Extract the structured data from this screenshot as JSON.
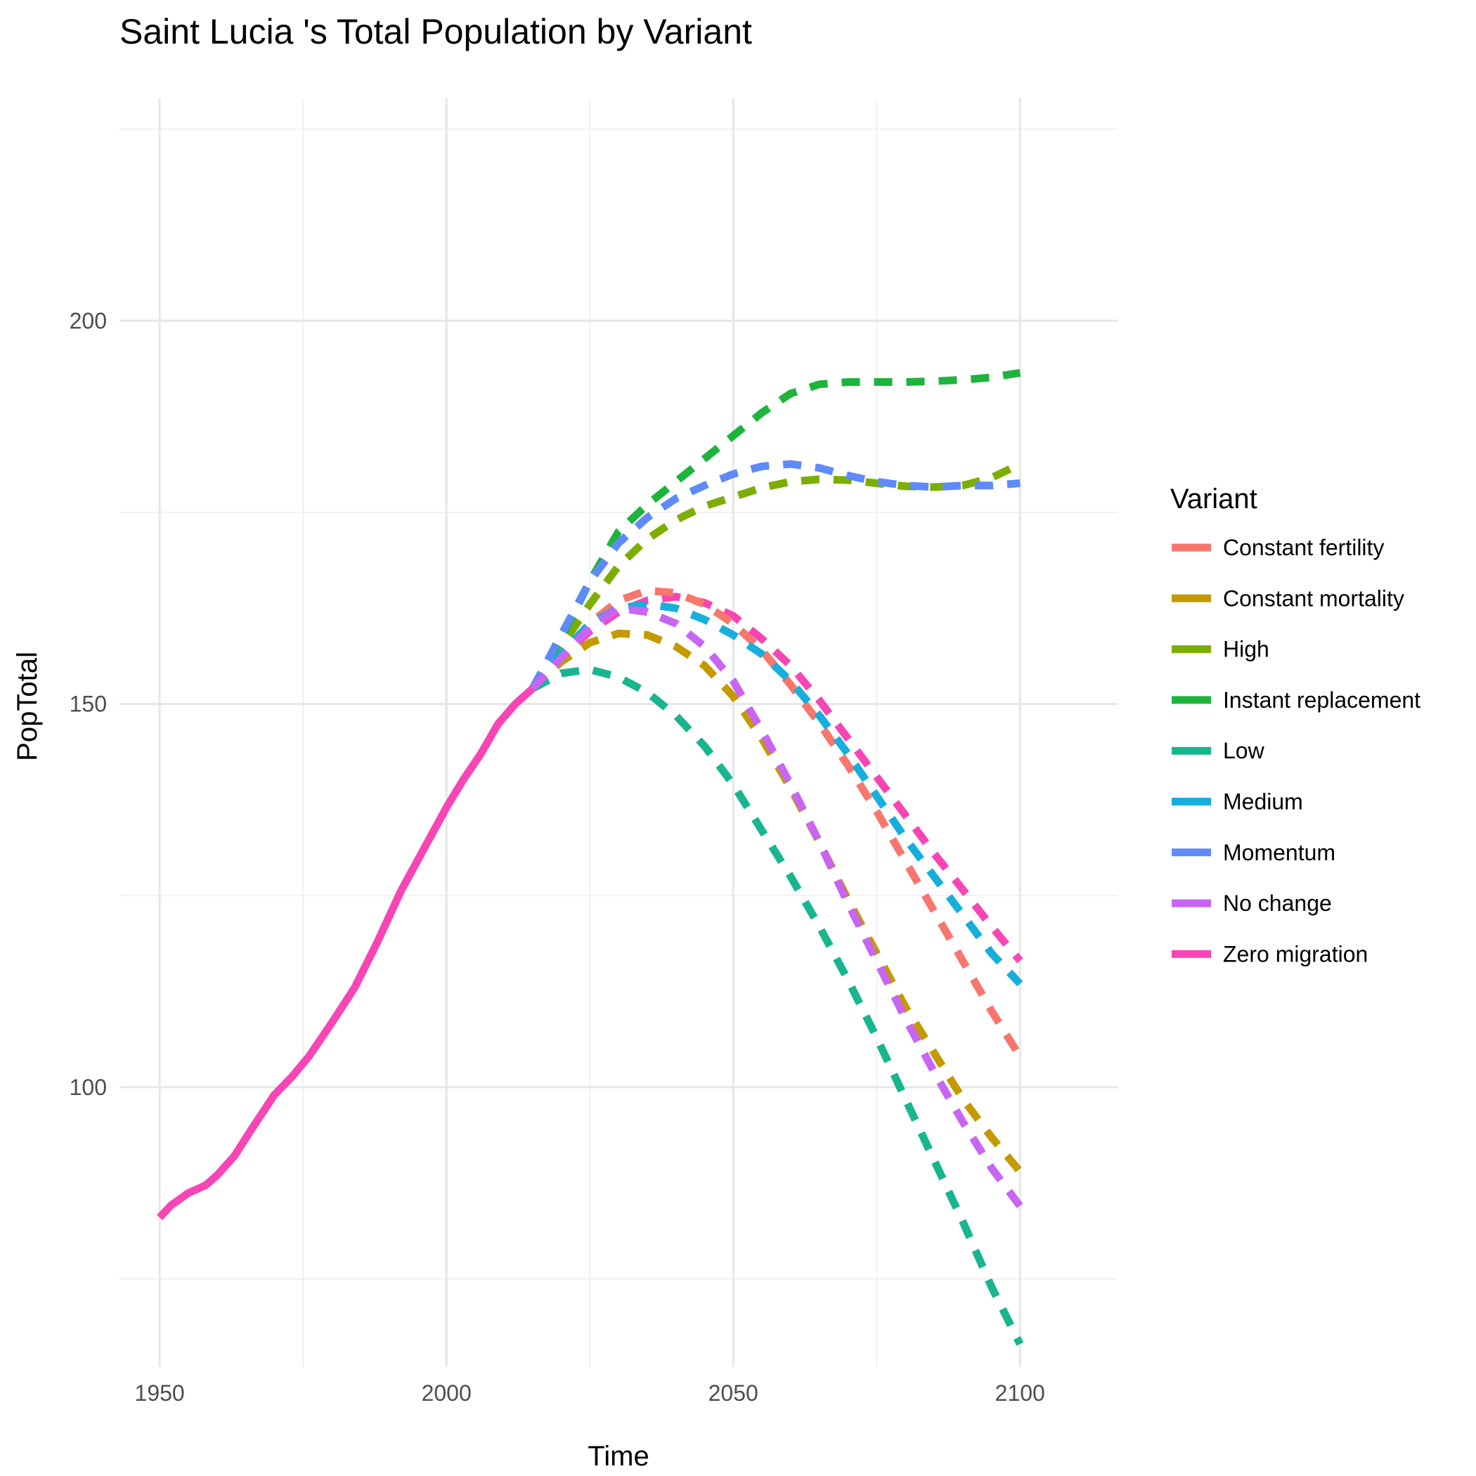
{
  "chart_data": {
    "type": "line",
    "title": "Saint Lucia 's Total Population by Variant",
    "xlabel": "Time",
    "ylabel": "PopTotal",
    "xlim": [
      1943,
      2117
    ],
    "ylim": [
      63.5,
      229
    ],
    "x_ticks": [
      1950,
      2000,
      2050,
      2100
    ],
    "x_tick_labels": [
      "1950",
      "2000",
      "2050",
      "2100"
    ],
    "y_ticks": [
      100,
      150,
      200
    ],
    "y_tick_labels": [
      "100",
      "150",
      "200"
    ],
    "grid": true,
    "legend": {
      "title": "Variant",
      "position": "right",
      "entries": [
        "Constant fertility",
        "Constant mortality",
        "High",
        "Instant replacement",
        "Low",
        "Medium",
        "Momentum",
        "No change",
        "Zero migration"
      ]
    },
    "colors": {
      "Constant fertility": "#F8766D",
      "Constant mortality": "#C49A00",
      "High": "#7CAE00",
      "Instant replacement": "#1EB43C",
      "Low": "#19B58F",
      "Medium": "#17AEDC",
      "Momentum": "#5F8AF9",
      "No change": "#C964F3",
      "Zero migration": "#F745B6"
    },
    "series": [
      {
        "name": "Zero migration",
        "style": "solid",
        "x": [
          1950,
          1952,
          1955,
          1958,
          1960,
          1963,
          1966,
          1970,
          1973,
          1976,
          1980,
          1984,
          1988,
          1992,
          1996,
          2000,
          2003,
          2006,
          2009,
          2012,
          2015
        ],
        "y": [
          83.0,
          84.6,
          86.2,
          87.2,
          88.5,
          91.0,
          94.5,
          99.0,
          101.3,
          104.0,
          108.4,
          113.0,
          119.0,
          125.5,
          131.0,
          136.5,
          140.2,
          143.5,
          147.4,
          150.0,
          152.0
        ]
      },
      {
        "name": "Zero migration",
        "style": "dashed",
        "x": [
          2015,
          2020,
          2025,
          2030,
          2035,
          2040,
          2045,
          2050,
          2055,
          2060,
          2065,
          2070,
          2075,
          2080,
          2085,
          2090,
          2095,
          2100
        ],
        "y": [
          152.0,
          156.0,
          159.5,
          162.0,
          163.5,
          164.0,
          163.2,
          161.5,
          158.5,
          155.0,
          150.5,
          145.5,
          140.5,
          135.5,
          130.5,
          125.8,
          121.0,
          116.5
        ]
      },
      {
        "name": "Constant fertility",
        "style": "dashed",
        "x": [
          2015,
          2020,
          2025,
          2030,
          2035,
          2040,
          2045,
          2050,
          2055,
          2060,
          2065,
          2070,
          2075,
          2080,
          2085,
          2090,
          2095,
          2100
        ],
        "y": [
          152.0,
          156.5,
          160.5,
          163.5,
          164.8,
          164.5,
          163.0,
          160.5,
          157.0,
          152.5,
          147.5,
          142.0,
          136.0,
          129.5,
          123.0,
          116.5,
          110.0,
          104.0
        ]
      },
      {
        "name": "Constant mortality",
        "style": "dashed",
        "x": [
          2015,
          2020,
          2025,
          2030,
          2035,
          2040,
          2045,
          2050,
          2055,
          2060,
          2065,
          2070,
          2075,
          2080,
          2085,
          2090,
          2095,
          2100
        ],
        "y": [
          152.0,
          155.5,
          158.0,
          159.2,
          159.0,
          157.5,
          155.0,
          151.0,
          145.5,
          139.0,
          132.0,
          124.5,
          117.5,
          110.5,
          104.5,
          98.5,
          93.5,
          89.0
        ]
      },
      {
        "name": "High",
        "style": "dashed",
        "x": [
          2015,
          2020,
          2025,
          2030,
          2035,
          2040,
          2045,
          2050,
          2055,
          2060,
          2065,
          2070,
          2075,
          2080,
          2085,
          2090,
          2095,
          2100
        ],
        "y": [
          152.0,
          157.5,
          163.0,
          168.0,
          171.5,
          174.0,
          175.8,
          177.0,
          178.2,
          179.0,
          179.3,
          179.2,
          178.8,
          178.4,
          178.3,
          178.5,
          179.5,
          181.3
        ]
      },
      {
        "name": "Instant replacement",
        "style": "dashed",
        "x": [
          2015,
          2020,
          2025,
          2030,
          2035,
          2040,
          2045,
          2050,
          2055,
          2060,
          2065,
          2070,
          2075,
          2080,
          2085,
          2090,
          2095,
          2100
        ],
        "y": [
          152.0,
          158.5,
          166.0,
          172.5,
          176.0,
          179.0,
          182.0,
          185.0,
          188.0,
          190.5,
          191.7,
          192.0,
          192.0,
          192.0,
          192.1,
          192.3,
          192.6,
          193.2
        ]
      },
      {
        "name": "Low",
        "style": "dashed",
        "x": [
          2015,
          2020,
          2025,
          2030,
          2035,
          2040,
          2045,
          2050,
          2055,
          2060,
          2065,
          2070,
          2075,
          2080,
          2085,
          2090,
          2095,
          2100
        ],
        "y": [
          152.0,
          154.0,
          154.5,
          153.5,
          151.5,
          148.5,
          144.5,
          139.5,
          133.5,
          127.5,
          121.0,
          114.0,
          106.5,
          98.5,
          90.5,
          82.5,
          74.0,
          66.5
        ]
      },
      {
        "name": "Medium",
        "style": "dashed",
        "x": [
          2015,
          2020,
          2025,
          2030,
          2035,
          2040,
          2045,
          2050,
          2055,
          2060,
          2065,
          2070,
          2075,
          2080,
          2085,
          2090,
          2095,
          2100
        ],
        "y": [
          152.0,
          156.5,
          160.5,
          162.5,
          163.0,
          162.5,
          161.0,
          159.0,
          156.5,
          153.0,
          148.5,
          143.5,
          138.0,
          132.5,
          127.5,
          122.5,
          117.5,
          113.5
        ]
      },
      {
        "name": "Momentum",
        "style": "dashed",
        "x": [
          2015,
          2020,
          2025,
          2030,
          2035,
          2040,
          2045,
          2050,
          2055,
          2060,
          2065,
          2070,
          2075,
          2080,
          2085,
          2090,
          2095,
          2100
        ],
        "y": [
          152.0,
          159.0,
          166.0,
          171.0,
          174.3,
          176.8,
          178.5,
          180.0,
          181.0,
          181.3,
          180.8,
          179.8,
          179.0,
          178.5,
          178.3,
          178.5,
          178.5,
          178.8
        ]
      },
      {
        "name": "No change",
        "style": "dashed",
        "x": [
          2015,
          2020,
          2025,
          2030,
          2035,
          2040,
          2045,
          2050,
          2055,
          2060,
          2065,
          2070,
          2075,
          2080,
          2085,
          2090,
          2095,
          2100
        ],
        "y": [
          152.0,
          156.0,
          160.0,
          162.5,
          162.0,
          160.5,
          157.5,
          153.0,
          146.5,
          139.5,
          132.0,
          124.0,
          116.5,
          109.0,
          102.0,
          95.5,
          89.5,
          84.5
        ]
      }
    ]
  }
}
